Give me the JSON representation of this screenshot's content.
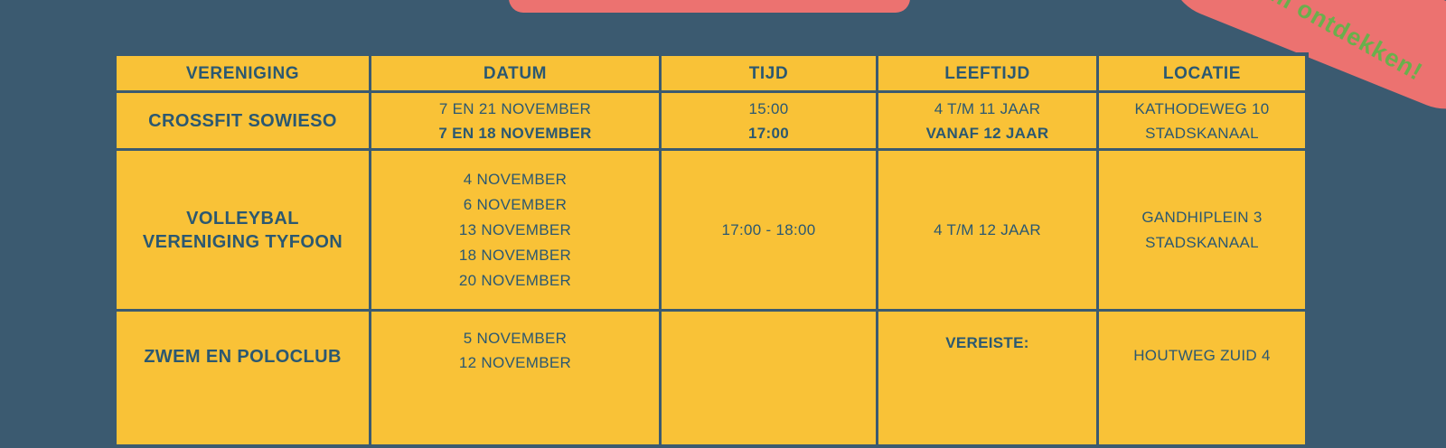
{
  "page": {
    "background_color": "#3b5a70",
    "accent_pink": "#ec7270",
    "accent_yellow": "#f9c237",
    "text_color": "#2b5871",
    "badge_green": "#6aaf4c"
  },
  "badge": {
    "label": "Kom ontdekken!"
  },
  "table": {
    "headers": [
      "VERENIGING",
      "DATUM",
      "TIJD",
      "LEEFTIJD",
      "LOCATIE"
    ],
    "rows": [
      {
        "vereniging": [
          "CROSSFIT SOWIESO"
        ],
        "datum": [
          "7 EN 21 NOVEMBER",
          "7 EN 18 NOVEMBER"
        ],
        "tijd": [
          "15:00",
          "17:00"
        ],
        "leeftijd": [
          "4 T/M 11 JAAR",
          "VANAF 12 JAAR"
        ],
        "locatie": [
          "KATHODEWEG 10",
          "STADSKANAAL"
        ]
      },
      {
        "vereniging": [
          "VOLLEYBAL",
          "VERENIGING TYFOON"
        ],
        "datum": [
          "4 NOVEMBER",
          "6 NOVEMBER",
          "13 NOVEMBER",
          "18  NOVEMBER",
          "20 NOVEMBER"
        ],
        "tijd": [
          "17:00 - 18:00"
        ],
        "leeftijd": [
          "4 T/M 12 JAAR"
        ],
        "locatie": [
          "GANDHIPLEIN 3",
          "STADSKANAAL"
        ]
      },
      {
        "vereniging": [
          "ZWEM EN POLOCLUB"
        ],
        "datum": [
          "5  NOVEMBER",
          "12 NOVEMBER"
        ],
        "tijd": [],
        "leeftijd": [
          "VEREISTE:"
        ],
        "locatie": [
          "HOUTWEG ZUID 4"
        ]
      }
    ]
  }
}
